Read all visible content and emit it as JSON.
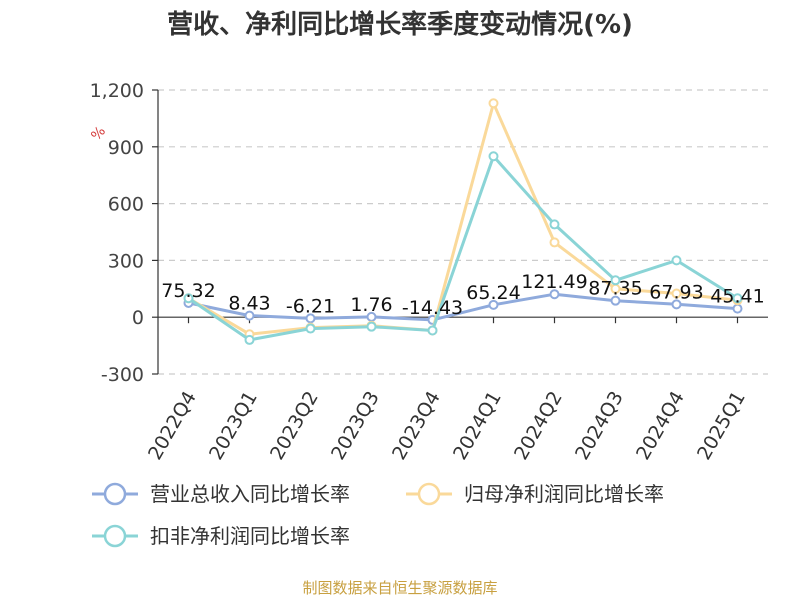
{
  "chart_data": {
    "type": "line",
    "title": "营收、净利同比增长率季度变动情况(%)",
    "ylabel": "%",
    "ylim": [
      -300,
      1200
    ],
    "yticks": [
      -300,
      0,
      300,
      600,
      900,
      1200
    ],
    "ytick_labels": [
      "-300",
      "0",
      "300",
      "600",
      "900",
      "1,200"
    ],
    "grid": true,
    "legend_placement": "bottom",
    "categories": [
      "2022Q4",
      "2023Q1",
      "2023Q2",
      "2023Q3",
      "2023Q4",
      "2024Q1",
      "2024Q2",
      "2024Q3",
      "2024Q4",
      "2025Q1"
    ],
    "series": [
      {
        "name": "营业总收入同比增长率",
        "color": "#8faadc",
        "values": [
          75.32,
          8.43,
          -6.21,
          1.76,
          -14.43,
          65.24,
          121.49,
          87.35,
          67.93,
          45.41
        ],
        "labels": [
          "75.32",
          "8.43",
          "-6.21",
          "1.76",
          "-14.43",
          "65.24",
          "121.49",
          "87.35",
          "67.93",
          "45.41"
        ]
      },
      {
        "name": "归母净利润同比增长率",
        "color": "#fad99a",
        "values": [
          100,
          -90,
          -55,
          -45,
          -70,
          1130,
          395,
          150,
          125,
          90
        ]
      },
      {
        "name": "扣非净利润同比增长率",
        "color": "#8ad4d6",
        "values": [
          100,
          -120,
          -60,
          -50,
          -70,
          850,
          490,
          195,
          300,
          100
        ]
      }
    ],
    "source": "制图数据来自恒生聚源数据库"
  }
}
